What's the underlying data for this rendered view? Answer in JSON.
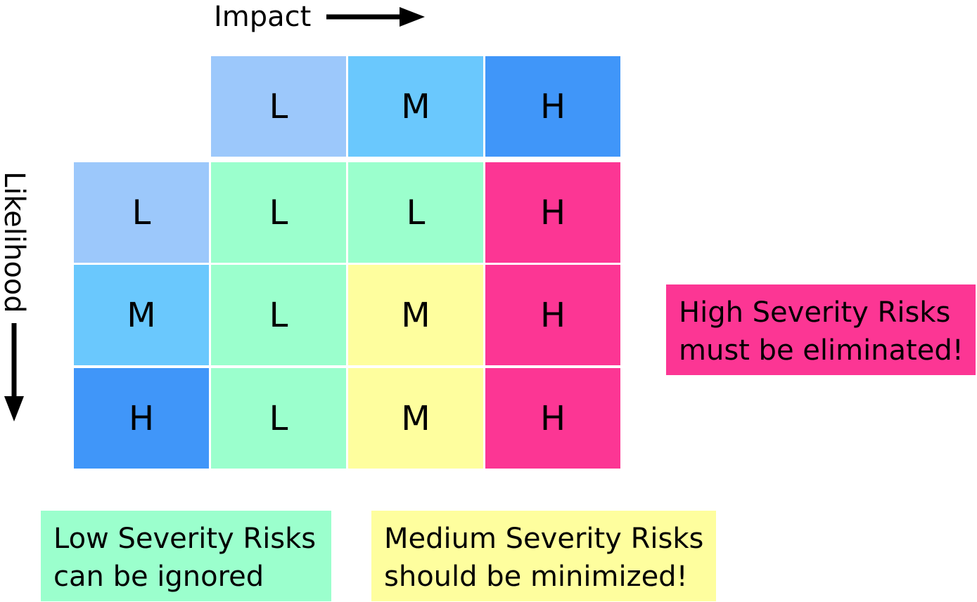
{
  "axes": {
    "impact": "Impact",
    "likelihood": "Likelihood"
  },
  "levels": [
    "L",
    "M",
    "H"
  ],
  "matrix": [
    [
      "L",
      "L",
      "H"
    ],
    [
      "L",
      "M",
      "H"
    ],
    [
      "L",
      "M",
      "H"
    ]
  ],
  "colors": {
    "header_low": "#9cc8fb",
    "header_medium": "#6ac8fd",
    "header_high": "#4096f9",
    "severity_low": "#9bffcd",
    "severity_medium": "#fefe9e",
    "severity_high": "#fc3694"
  },
  "notes": {
    "high": [
      "High Severity Risks",
      "must be eliminated!"
    ],
    "low": [
      "Low Severity Risks",
      "can be ignored"
    ],
    "medium": [
      "Medium Severity Risks",
      "should be minimized!"
    ]
  }
}
